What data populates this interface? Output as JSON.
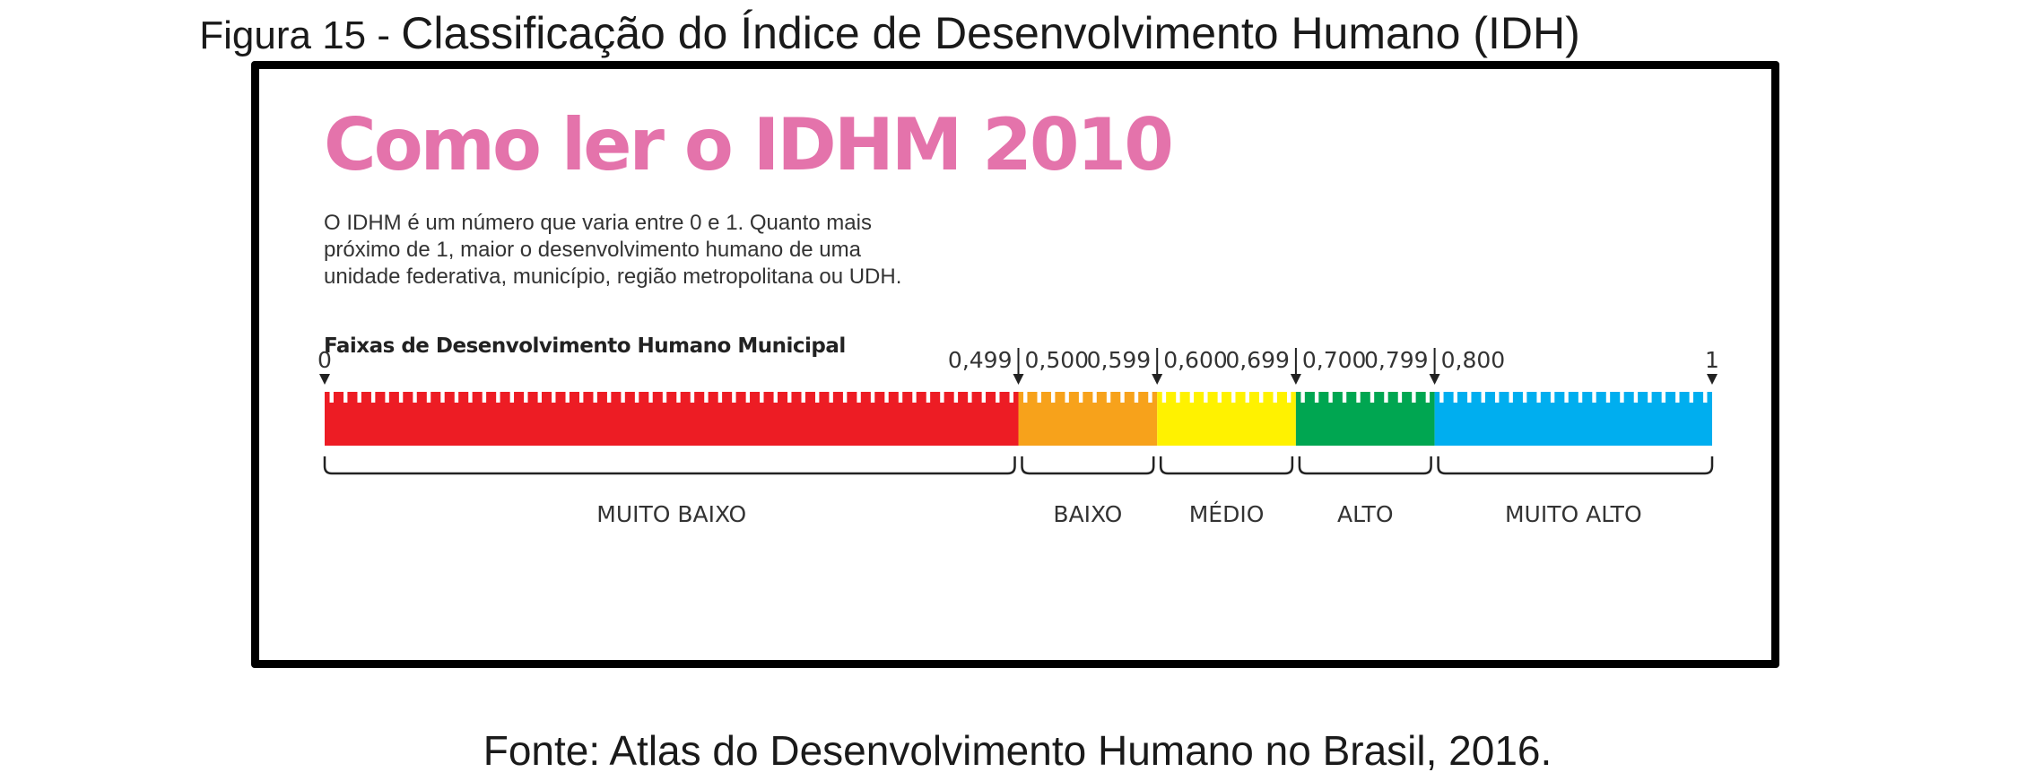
{
  "figure": {
    "caption_prefix": "Figura 15 - ",
    "caption_title": "Classificação do Índice de Desenvolvimento Humano (IDH)",
    "source": "Fonte: Atlas do Desenvolvimento Humano no Brasil, 2016."
  },
  "infographic": {
    "title": "Como ler o IDHM 2010",
    "description_lines": [
      "O IDHM é um número que varia entre 0 e 1. Quanto mais",
      "próximo de 1, maior o desenvolvimento humano de uma",
      "unidade federativa, município, região metropolitana ou UDH."
    ],
    "scale_title": "Faixas  de Desenvolvimento Humano Municipal"
  },
  "scale": {
    "min": 0,
    "max": 1,
    "endpoint_labels": {
      "start": "0",
      "end": "1"
    },
    "bands": [
      {
        "name": "MUITO BAIXO",
        "from": 0.0,
        "to": 0.5,
        "color": "#ed1c24"
      },
      {
        "name": "BAIXO",
        "from": 0.5,
        "to": 0.6,
        "color": "#f7a21b"
      },
      {
        "name": "MÉDIO",
        "from": 0.6,
        "to": 0.7,
        "color": "#fff200"
      },
      {
        "name": "ALTO",
        "from": 0.7,
        "to": 0.8,
        "color": "#00a651"
      },
      {
        "name": "MUITO ALTO",
        "from": 0.8,
        "to": 1.0,
        "color": "#00aeef"
      }
    ],
    "boundaries": [
      {
        "value": 0.5,
        "low_label": "0,499",
        "high_label": "0,500"
      },
      {
        "value": 0.6,
        "low_label": "0,599",
        "high_label": "0,600"
      },
      {
        "value": 0.7,
        "low_label": "0,699",
        "high_label": "0,700"
      },
      {
        "value": 0.8,
        "low_label": "0,799",
        "high_label": "0,800"
      }
    ]
  }
}
